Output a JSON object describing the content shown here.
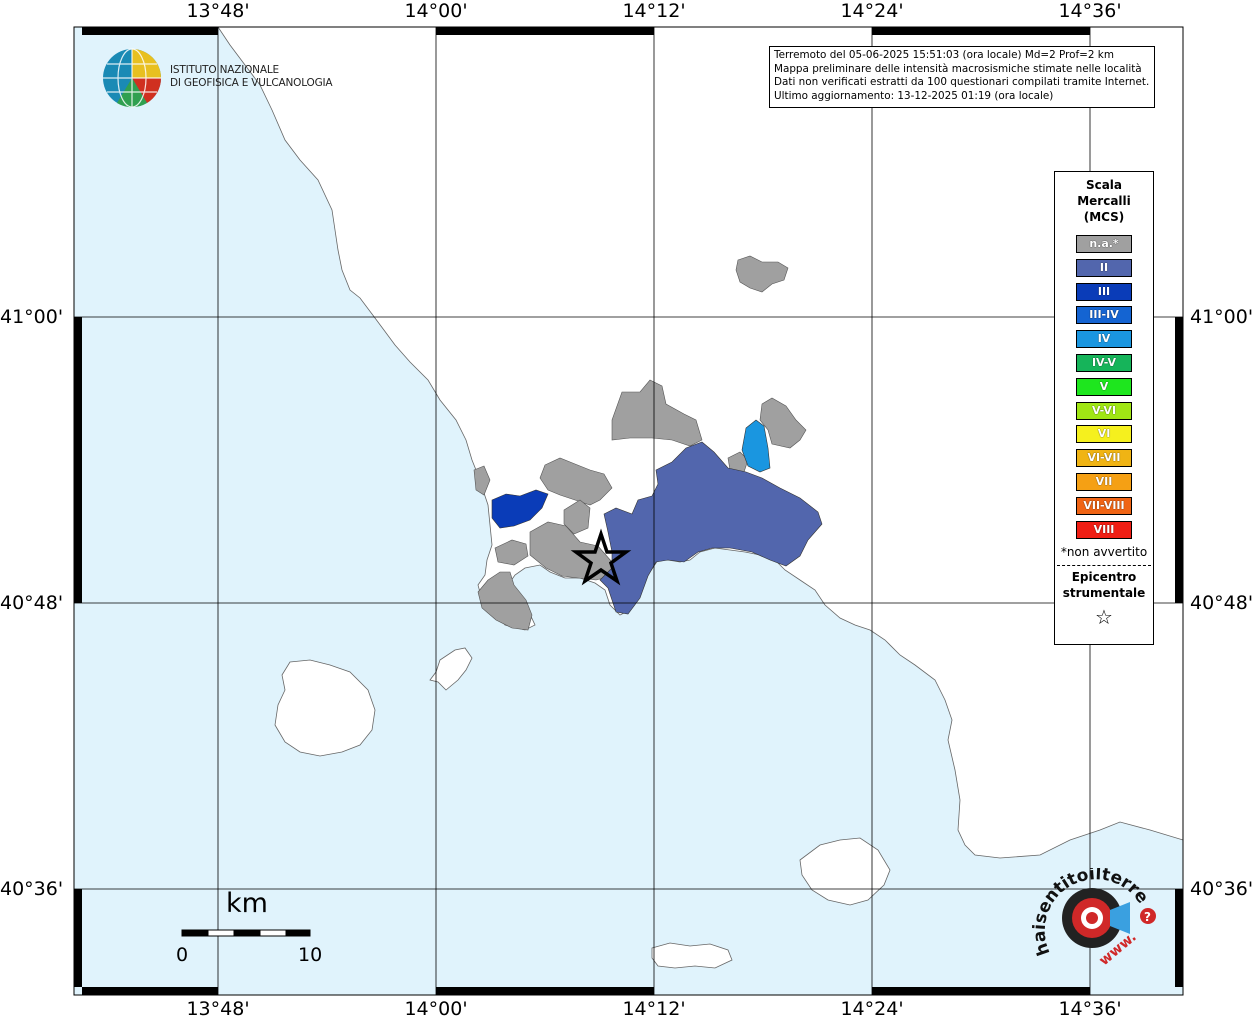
{
  "map": {
    "top_labels": [
      "13°48'",
      "14°00'",
      "14°12'",
      "14°24'",
      "14°36'"
    ],
    "bottom_labels": [
      "13°48'",
      "14°00'",
      "14°12'",
      "14°24'",
      "14°36'"
    ],
    "left_labels": [
      "41°00'",
      "40°48'",
      "40°36'"
    ],
    "right_labels": [
      "41°00'",
      "40°48'",
      "40°36'"
    ],
    "colors": {
      "sea": "#e0f3fc",
      "land": "#ffffff",
      "na": "#a0a0a0",
      "II": "#5266ad",
      "III": "#0a3cb8",
      "IV": "#1a96e0"
    }
  },
  "info_box": {
    "line1": "Terremoto del 05-06-2025 15:51:03 (ora locale) Md=2 Prof=2 km",
    "line2": "Mappa preliminare delle intensità macrosismiche stimate nelle località",
    "line3": "Dati non verificati estratti da 100 questionari compilati tramite Internet.",
    "line4": "Ultimo aggiornamento: 13-12-2025 01:19 (ora locale)"
  },
  "logo": {
    "line1": "ISTITUTO NAZIONALE",
    "line2": "DI GEOFISICA E VULCANOLOGIA"
  },
  "legend": {
    "title": "Scala\nMercalli\n(MCS)",
    "items": [
      {
        "label": "n.a.*",
        "color": "#a0a0a0"
      },
      {
        "label": "II",
        "color": "#5266ad"
      },
      {
        "label": "III",
        "color": "#0a3cb8"
      },
      {
        "label": "III-IV",
        "color": "#1464d2"
      },
      {
        "label": "IV",
        "color": "#1a96e0"
      },
      {
        "label": "IV-V",
        "color": "#16b45a"
      },
      {
        "label": "V",
        "color": "#1ee61e"
      },
      {
        "label": "V-VI",
        "color": "#a0e614"
      },
      {
        "label": "VI",
        "color": "#f5f01e"
      },
      {
        "label": "VI-VII",
        "color": "#f0b414"
      },
      {
        "label": "VII",
        "color": "#f5a014"
      },
      {
        "label": "VII-VIII",
        "color": "#f06414"
      },
      {
        "label": "VIII",
        "color": "#f01e14"
      }
    ],
    "na_note": "*non avvertito",
    "epicenter_title": "Epicentro\nstrumentale",
    "epicenter_symbol": "☆"
  },
  "scale": {
    "title": "km",
    "start": "0",
    "end": "10"
  },
  "site_logo": {
    "text_arc": "haisentitoilterremoto.it",
    "prefix": "www."
  }
}
